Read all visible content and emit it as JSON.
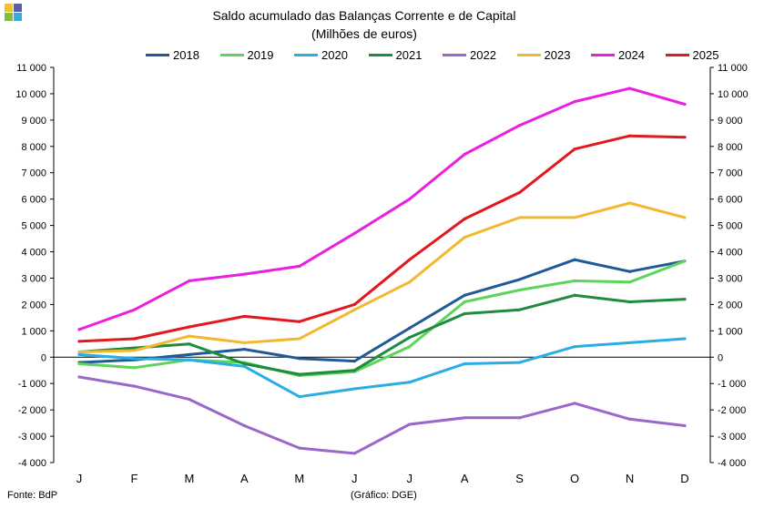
{
  "header": {
    "logo_colors": [
      "#f2c12e",
      "#5b5ea6",
      "#7cbf3f",
      "#3ea9d9"
    ]
  },
  "chart_data": {
    "type": "line",
    "title": "Saldo acumulado  das Balanças Corrente e de Capital",
    "subtitle": "(Milhões de euros)",
    "categories": [
      "J",
      "F",
      "M",
      "A",
      "M",
      "J",
      "J",
      "A",
      "S",
      "O",
      "N",
      "D"
    ],
    "ylim": [
      -4000,
      11000
    ],
    "yticks": [
      -4000,
      -3000,
      -2000,
      -1000,
      0,
      1000,
      2000,
      3000,
      4000,
      5000,
      6000,
      7000,
      8000,
      9000,
      10000,
      11000
    ],
    "ytick_labels": [
      "-4 000",
      "-3 000",
      "-2 000",
      "-1 000",
      "0",
      "1 000",
      "2 000",
      "3 000",
      "4 000",
      "5 000",
      "6 000",
      "7 000",
      "8 000",
      "9 000",
      "10 000",
      "11 000"
    ],
    "y_axis_both_sides": true,
    "grid": false,
    "legend_position": "top",
    "series": [
      {
        "name": "2018",
        "color": "#1f5a96",
        "values": [
          -200,
          -100,
          100,
          300,
          -50,
          -150,
          1100,
          2350,
          2950,
          3700,
          3250,
          3650
        ]
      },
      {
        "name": "2019",
        "color": "#5ed45a",
        "values": [
          -250,
          -400,
          -100,
          -200,
          -700,
          -550,
          400,
          2100,
          2550,
          2900,
          2850,
          3650
        ]
      },
      {
        "name": "2020",
        "color": "#29aee3",
        "values": [
          100,
          -50,
          -100,
          -350,
          -1500,
          -1200,
          -950,
          -250,
          -200,
          400,
          550,
          700
        ]
      },
      {
        "name": "2021",
        "color": "#1e8c3e",
        "values": [
          200,
          350,
          500,
          -250,
          -650,
          -500,
          750,
          1650,
          1800,
          2350,
          2100,
          2200
        ]
      },
      {
        "name": "2022",
        "color": "#9a68c8",
        "values": [
          -750,
          -1100,
          -1600,
          -2600,
          -3450,
          -3650,
          -2550,
          -2300,
          -2300,
          -1750,
          -2350,
          -2600
        ]
      },
      {
        "name": "2023",
        "color": "#f2b82e",
        "values": [
          200,
          250,
          800,
          550,
          700,
          1800,
          2850,
          4550,
          5300,
          5300,
          5850,
          5300
        ]
      },
      {
        "name": "2024",
        "color": "#ea1fe0",
        "values": [
          1050,
          1800,
          2900,
          3150,
          3450,
          4700,
          6000,
          7700,
          8800,
          9700,
          10200,
          9600
        ]
      },
      {
        "name": "2025",
        "color": "#e3181c",
        "values": [
          600,
          700,
          1150,
          1550,
          1350,
          2000,
          3700,
          5250,
          6250,
          7900,
          8400,
          8350
        ]
      }
    ]
  },
  "footer": {
    "source": "Fonte: BdP",
    "credit": "(Gráfico: DGE)"
  }
}
